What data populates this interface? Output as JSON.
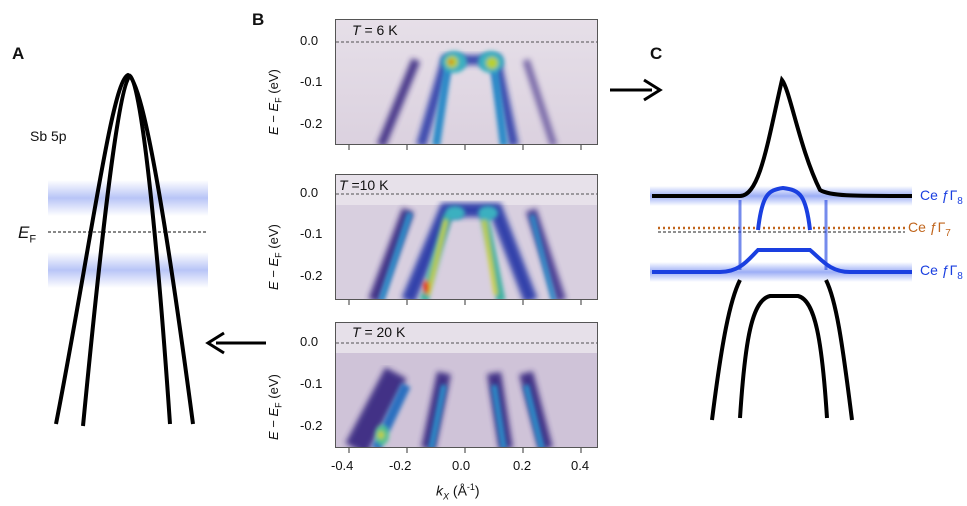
{
  "panels": {
    "A": {
      "letter": "A",
      "band_label": "Sb 5p",
      "ef_label_main": "E",
      "ef_label_sub": "F"
    },
    "B": {
      "letter": "B",
      "subpanels": [
        {
          "temp_prefix": "T",
          "temp_value": "= 6 K"
        },
        {
          "temp_prefix": "T",
          "temp_value": "=10 K"
        },
        {
          "temp_prefix": "T",
          "temp_value": "= 20 K"
        }
      ],
      "y_axis_label": "E − E",
      "y_axis_sub": "F",
      "y_axis_unit": " (eV)",
      "y_ticks": [
        "0.0",
        "-0.1",
        "-0.2"
      ],
      "x_ticks": [
        "-0.4",
        "-0.2",
        "0.0",
        "0.2",
        "0.4"
      ],
      "x_axis_label": "k",
      "x_axis_sub": "X",
      "x_axis_unit": " (Å",
      "x_axis_unit_sup": "-1",
      "x_axis_unit_close": ")"
    },
    "C": {
      "letter": "C",
      "labels": [
        {
          "main": "Ce ƒΓ",
          "sub": "8",
          "color": "#1a3fe0"
        },
        {
          "main": "Ce ƒΓ",
          "sub": "7",
          "color": "#c0651c"
        },
        {
          "main": "Ce ƒΓ",
          "sub": "8",
          "color": "#1a3fe0"
        }
      ]
    }
  },
  "colors": {
    "band": "#000000",
    "f_level_blue": "#1a3fe0",
    "f_level_orange": "#c0651c",
    "arpes_bg": "#d9d0de",
    "arpes_intensity": "#3d2a8a"
  }
}
